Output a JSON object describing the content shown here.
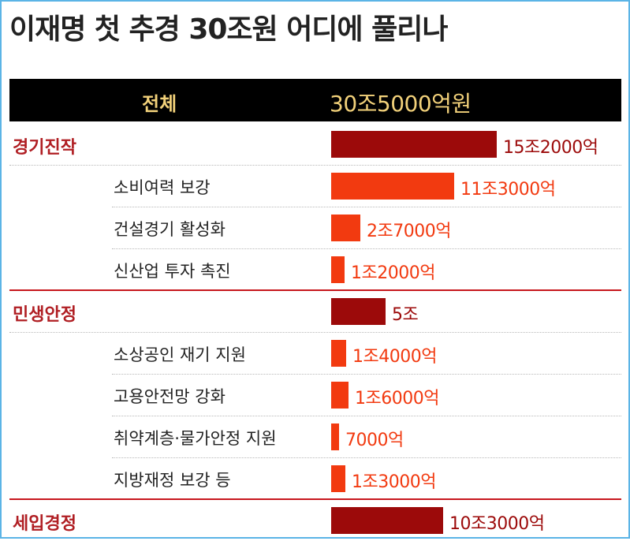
{
  "title": "이재명 첫 추경 30조원 어디에 풀리나",
  "chart_data": {
    "type": "bar",
    "orientation": "horizontal",
    "unit": "억원",
    "header": {
      "label": "전체",
      "value_label": "30조5000억원",
      "value": 305000
    },
    "rows": [
      {
        "level": "category",
        "label": "경기진작",
        "value": 152000,
        "value_label": "15조2000억"
      },
      {
        "level": "item",
        "label": "소비여력 보강",
        "value": 113000,
        "value_label": "11조3000억"
      },
      {
        "level": "item",
        "label": "건설경기 활성화",
        "value": 27000,
        "value_label": "2조7000억"
      },
      {
        "level": "item",
        "label": "신산업 투자 촉진",
        "value": 12000,
        "value_label": "1조2000억"
      },
      {
        "level": "category",
        "label": "민생안정",
        "value": 50000,
        "value_label": "5조"
      },
      {
        "level": "item",
        "label": "소상공인 재기 지원",
        "value": 14000,
        "value_label": "1조4000억"
      },
      {
        "level": "item",
        "label": "고용안전망 강화",
        "value": 16000,
        "value_label": "1조6000억"
      },
      {
        "level": "item",
        "label": "취약계층·물가안정 지원",
        "value": 7000,
        "value_label": "7000억"
      },
      {
        "level": "item",
        "label": "지방재정 보강 등",
        "value": 13000,
        "value_label": "1조3000억"
      },
      {
        "level": "category",
        "label": "세입경정",
        "value": 103000,
        "value_label": "10조3000억"
      }
    ]
  },
  "colors": {
    "category_bar": "#9c0a0a",
    "item_bar": "#f23a10",
    "category_label": "#b01e23",
    "header_bg": "#000000",
    "header_text": "#f2d17a",
    "frame": "#5bb4e6"
  }
}
